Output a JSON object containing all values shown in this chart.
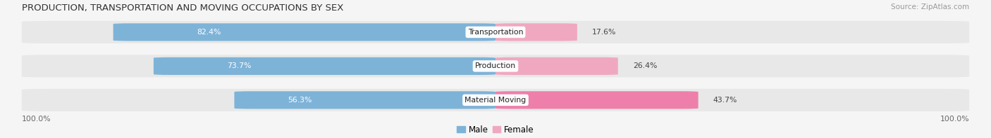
{
  "title": "PRODUCTION, TRANSPORTATION AND MOVING OCCUPATIONS BY SEX",
  "source": "Source: ZipAtlas.com",
  "categories": [
    "Transportation",
    "Production",
    "Material Moving"
  ],
  "male_values": [
    82.4,
    73.7,
    56.3
  ],
  "female_values": [
    17.6,
    26.4,
    43.7
  ],
  "male_color": "#7eb3d8",
  "female_color_light": "#f0a8c0",
  "female_color_dark": "#ee82a8",
  "female_colors": [
    "#f0a8c0",
    "#f0a8c0",
    "#ee7fab"
  ],
  "bar_bg_color": "#e8e8e8",
  "background_color": "#f5f5f5",
  "row_bg_color": "#e8e8e8",
  "title_fontsize": 9.5,
  "source_fontsize": 7.5,
  "label_fontsize": 8,
  "axis_label_left": "100.0%",
  "axis_label_right": "100.0%",
  "legend_male": "Male",
  "legend_female": "Female"
}
